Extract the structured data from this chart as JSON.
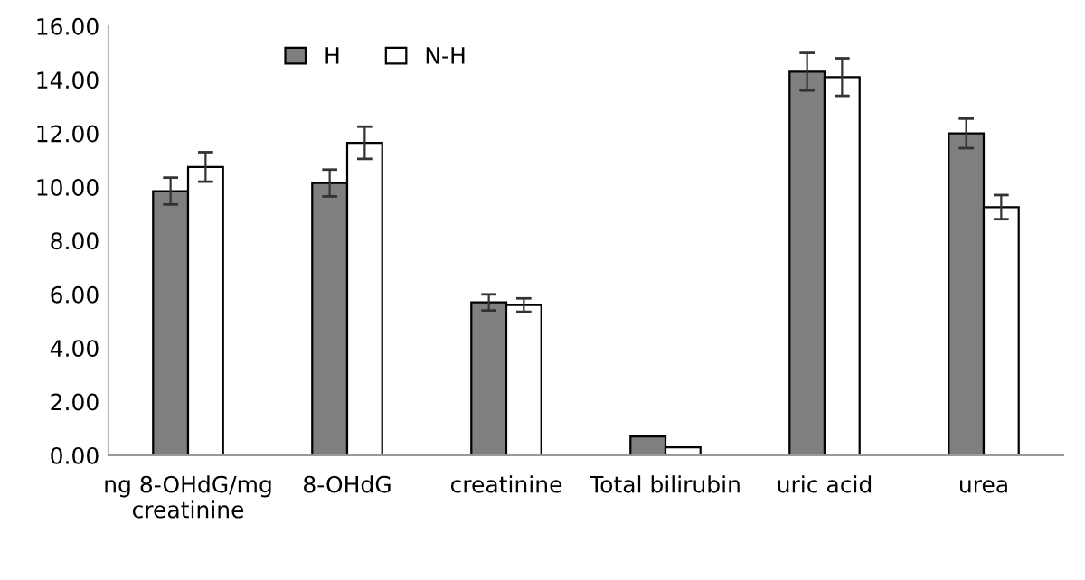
{
  "chart_data": {
    "type": "bar",
    "categories": [
      "ng 8-OHdG/mg creatinine",
      "8-OHdG",
      "creatinine",
      "Total bilirubin",
      "uric acid",
      "urea"
    ],
    "series": [
      {
        "name": "H",
        "color": "#7f7f7f",
        "values": [
          9.85,
          10.15,
          5.7,
          0.7,
          14.3,
          12.0
        ],
        "errors": [
          0.5,
          0.5,
          0.3,
          null,
          0.7,
          0.55
        ]
      },
      {
        "name": "N-H",
        "color": "#ffffff",
        "values": [
          10.75,
          11.65,
          5.6,
          0.3,
          14.1,
          9.25
        ],
        "errors": [
          0.55,
          0.6,
          0.25,
          null,
          0.7,
          0.45
        ]
      }
    ],
    "ylim": [
      0,
      16
    ],
    "yticks": [
      {
        "value": 0,
        "label": "0.00"
      },
      {
        "value": 2,
        "label": "2.00"
      },
      {
        "value": 4,
        "label": "4.00"
      },
      {
        "value": 6,
        "label": "6.00"
      },
      {
        "value": 8,
        "label": "8.00"
      },
      {
        "value": 10,
        "label": "10.00"
      },
      {
        "value": 12,
        "label": "12.00"
      },
      {
        "value": 14,
        "label": "14.00"
      },
      {
        "value": 16,
        "label": "16.00"
      }
    ],
    "grid": false,
    "legend": "top"
  }
}
